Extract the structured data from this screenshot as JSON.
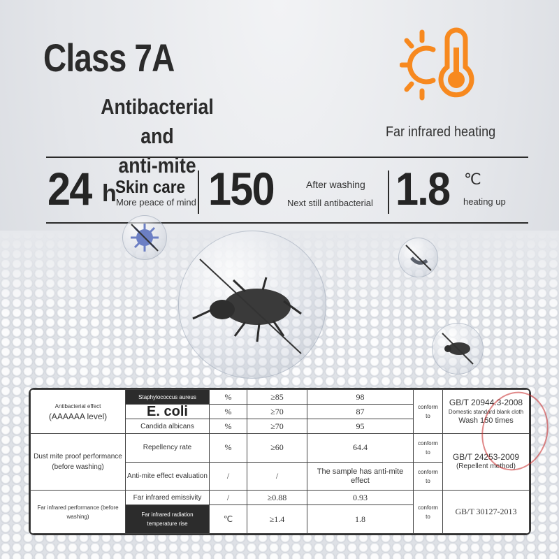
{
  "header": {
    "title": "Class 7A",
    "subtitle_line1": "Antibacterial and",
    "subtitle_line2": "anti-mite",
    "heat_label": "Far infrared heating",
    "heat_icon": "sun-thermometer-icon",
    "accent_color": "#f7891f"
  },
  "stats": [
    {
      "value": "24",
      "suffix": "h",
      "title": "Skin care",
      "caption": "More peace of mind"
    },
    {
      "value": "150",
      "title": "After washing",
      "caption": "Next still antibacterial"
    },
    {
      "value": "1.8",
      "suffix": "℃",
      "caption": "heating up"
    }
  ],
  "table": {
    "groups": {
      "antibacterial": "Antibacterial effect",
      "antibacterial_level": "(AAAAAA level)",
      "mite": "Dust mite proof performance",
      "mite_sub": "(before washing)",
      "infrared": "Far infrared performance (before washing)"
    },
    "rows": [
      {
        "item": "Staphylococcus aureus",
        "unit": "%",
        "req": "≥85",
        "result": "98"
      },
      {
        "item": "E. coli",
        "unit": "%",
        "req": "≥70",
        "result": "87"
      },
      {
        "item": "Candida albicans",
        "unit": "%",
        "req": "≥70",
        "result": "95"
      },
      {
        "item": "Repellency rate",
        "unit": "%",
        "req": "≥60",
        "result": "64.4"
      },
      {
        "item": "Anti-mite effect evaluation",
        "unit": "/",
        "req": "/",
        "result": "The sample has anti-mite effect"
      },
      {
        "item": "Far infrared emissivity",
        "unit": "/",
        "req": "≥0.88",
        "result": "0.93"
      },
      {
        "item": "Far infrared radiation temperature rise",
        "unit": "℃",
        "req": "≥1.4",
        "result": "1.8"
      }
    ],
    "conform": "conform to",
    "standards": {
      "s1": "GB/T 20944.3-2008",
      "s1_note": "Domestic standard blank cloth",
      "s1_wash": "Wash 150 times",
      "s2": "GB/T 24253-2009",
      "s2_note": "(Repellent method)",
      "s3": "GB/T 30127-2013"
    }
  }
}
